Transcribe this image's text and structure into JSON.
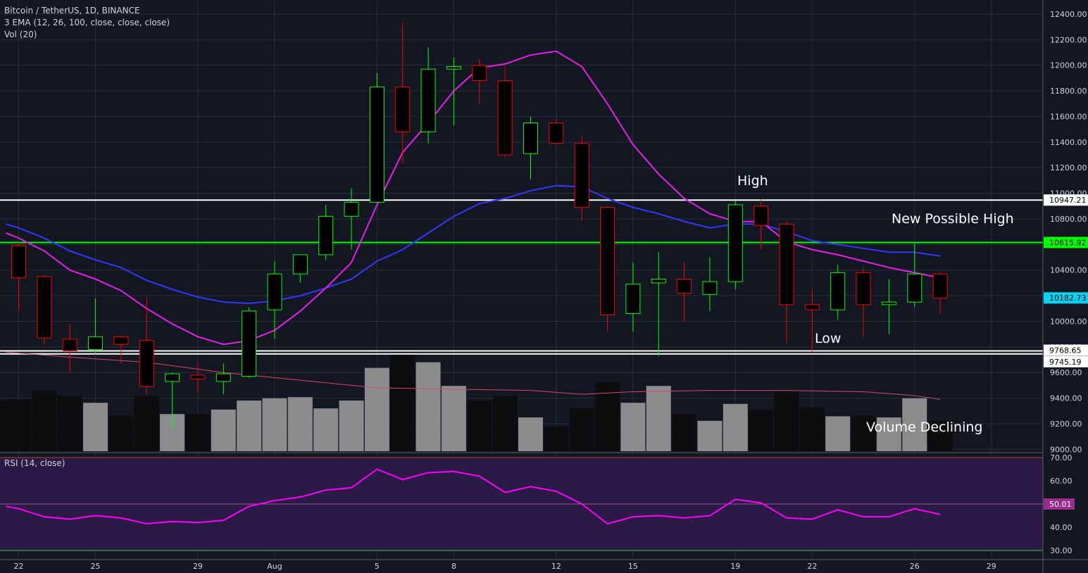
{
  "legend": {
    "symbol": "Bitcoin / TetherUS, 1D, BINANCE",
    "ema": "3 EMA (12, 26, 100, close, close, close)",
    "vol": "Vol (20)",
    "rsi": "RSI (14, close)"
  },
  "annotations": [
    "High",
    "New Possible High",
    "Low",
    "Volume Declining"
  ],
  "colors": {
    "background": "#131722",
    "up": "#00ff00",
    "down": "#ff0000",
    "ema_fast": "#e91ee9",
    "ema_slow": "#3535ff",
    "ema_long": "#d9456e",
    "rsi_line": "#ff00ff",
    "rsi_band": "#2a1a45",
    "level_green": "#00ff00",
    "level_white": "#ffffff",
    "price_badge": "#00d4f0"
  },
  "chart_data": {
    "type": "candlestick",
    "price_axis_ticks": [
      "12400.00",
      "12200.00",
      "12000.00",
      "11800.00",
      "11600.00",
      "11400.00",
      "11200.00",
      "11000.00",
      "10800.00",
      "10600.00",
      "10400.00",
      "10200.00",
      "10000.00",
      "9800.00",
      "9600.00",
      "9400.00",
      "9200.00",
      "9000.00"
    ],
    "rsi_axis_ticks": [
      "70.00",
      "60.00",
      "50.00",
      "40.00",
      "30.00"
    ],
    "x_labels": [
      {
        "day": 0,
        "label": "22"
      },
      {
        "day": 3,
        "label": "25"
      },
      {
        "day": 7,
        "label": "29"
      },
      {
        "day": 10,
        "label": "Aug"
      },
      {
        "day": 14,
        "label": "5"
      },
      {
        "day": 17,
        "label": "8"
      },
      {
        "day": 21,
        "label": "12"
      },
      {
        "day": 24,
        "label": "15"
      },
      {
        "day": 28,
        "label": "19"
      },
      {
        "day": 31,
        "label": "22"
      },
      {
        "day": 35,
        "label": "26"
      },
      {
        "day": 38,
        "label": "29"
      }
    ],
    "price_labels": [
      {
        "value": 10947.21,
        "text": "10947.21",
        "style": "white"
      },
      {
        "value": 10615.92,
        "text": "10615.92",
        "style": "green"
      },
      {
        "value": 10182.73,
        "text": "10182.73",
        "style": "cyan"
      },
      {
        "value": 9768.65,
        "text": "9768.65",
        "style": "white"
      },
      {
        "value": 9745.19,
        "text": "9745.19",
        "style": "white"
      }
    ],
    "rsi_label": "50.01",
    "levels": [
      {
        "value": 10947.21,
        "color": "white"
      },
      {
        "value": 10615.92,
        "color": "green"
      },
      {
        "value": 9768.65,
        "color": "white"
      },
      {
        "value": 9745.19,
        "color": "white"
      }
    ],
    "candles": [
      {
        "day": 0,
        "o": 10590,
        "h": 10620,
        "l": 10080,
        "c": 10340
      },
      {
        "day": 1,
        "o": 10350,
        "h": 10360,
        "l": 9820,
        "c": 9870
      },
      {
        "day": 2,
        "o": 9860,
        "h": 9980,
        "l": 9600,
        "c": 9770
      },
      {
        "day": 3,
        "o": 9780,
        "h": 10180,
        "l": 9740,
        "c": 9880
      },
      {
        "day": 4,
        "o": 9880,
        "h": 9890,
        "l": 9670,
        "c": 9820
      },
      {
        "day": 5,
        "o": 9850,
        "h": 10190,
        "l": 9430,
        "c": 9490
      },
      {
        "day": 6,
        "o": 9530,
        "h": 9600,
        "l": 9160,
        "c": 9590
      },
      {
        "day": 7,
        "o": 9580,
        "h": 9680,
        "l": 9440,
        "c": 9550
      },
      {
        "day": 8,
        "o": 9530,
        "h": 9670,
        "l": 9430,
        "c": 9590
      },
      {
        "day": 9,
        "o": 9570,
        "h": 10110,
        "l": 9560,
        "c": 10080
      },
      {
        "day": 10,
        "o": 10090,
        "h": 10470,
        "l": 9860,
        "c": 10370
      },
      {
        "day": 11,
        "o": 10370,
        "h": 10510,
        "l": 10300,
        "c": 10520
      },
      {
        "day": 12,
        "o": 10520,
        "h": 10910,
        "l": 10480,
        "c": 10820
      },
      {
        "day": 13,
        "o": 10820,
        "h": 11040,
        "l": 10560,
        "c": 10930
      },
      {
        "day": 14,
        "o": 10930,
        "h": 11940,
        "l": 10930,
        "c": 11830
      },
      {
        "day": 15,
        "o": 11830,
        "h": 12330,
        "l": 11230,
        "c": 11480
      },
      {
        "day": 16,
        "o": 11480,
        "h": 12140,
        "l": 11390,
        "c": 11970
      },
      {
        "day": 17,
        "o": 11970,
        "h": 12060,
        "l": 11530,
        "c": 11990
      },
      {
        "day": 18,
        "o": 12000,
        "h": 12050,
        "l": 11700,
        "c": 11880
      },
      {
        "day": 19,
        "o": 11880,
        "h": 11990,
        "l": 11280,
        "c": 11300
      },
      {
        "day": 20,
        "o": 11310,
        "h": 11600,
        "l": 11110,
        "c": 11550
      },
      {
        "day": 21,
        "o": 11550,
        "h": 11580,
        "l": 11400,
        "c": 11390
      },
      {
        "day": 22,
        "o": 11390,
        "h": 11450,
        "l": 10780,
        "c": 10890
      },
      {
        "day": 23,
        "o": 10890,
        "h": 10900,
        "l": 9920,
        "c": 10050
      },
      {
        "day": 24,
        "o": 10060,
        "h": 10460,
        "l": 9920,
        "c": 10290
      },
      {
        "day": 25,
        "o": 10300,
        "h": 10540,
        "l": 9730,
        "c": 10330
      },
      {
        "day": 26,
        "o": 10330,
        "h": 10460,
        "l": 10000,
        "c": 10220
      },
      {
        "day": 27,
        "o": 10210,
        "h": 10500,
        "l": 10080,
        "c": 10310
      },
      {
        "day": 28,
        "o": 10310,
        "h": 10940,
        "l": 10250,
        "c": 10910
      },
      {
        "day": 29,
        "o": 10900,
        "h": 10950,
        "l": 10560,
        "c": 10750
      },
      {
        "day": 30,
        "o": 10760,
        "h": 10780,
        "l": 9830,
        "c": 10130
      },
      {
        "day": 31,
        "o": 10130,
        "h": 10250,
        "l": 9750,
        "c": 10090
      },
      {
        "day": 32,
        "o": 10090,
        "h": 10440,
        "l": 10010,
        "c": 10380
      },
      {
        "day": 33,
        "o": 10380,
        "h": 10420,
        "l": 9880,
        "c": 10130
      },
      {
        "day": 34,
        "o": 10130,
        "h": 10330,
        "l": 9900,
        "c": 10150
      },
      {
        "day": 35,
        "o": 10150,
        "h": 10620,
        "l": 10110,
        "c": 10370
      },
      {
        "day": 36,
        "o": 10370,
        "h": 10380,
        "l": 10060,
        "c": 10180
      }
    ],
    "ema_fast": [
      {
        "day": -0.5,
        "v": 10690
      },
      {
        "day": 0,
        "v": 10650
      },
      {
        "day": 1,
        "v": 10550
      },
      {
        "day": 2,
        "v": 10400
      },
      {
        "day": 3,
        "v": 10330
      },
      {
        "day": 4,
        "v": 10240
      },
      {
        "day": 5,
        "v": 10100
      },
      {
        "day": 6,
        "v": 9980
      },
      {
        "day": 7,
        "v": 9880
      },
      {
        "day": 8,
        "v": 9820
      },
      {
        "day": 9,
        "v": 9850
      },
      {
        "day": 10,
        "v": 9930
      },
      {
        "day": 11,
        "v": 10080
      },
      {
        "day": 12,
        "v": 10260
      },
      {
        "day": 13,
        "v": 10460
      },
      {
        "day": 14,
        "v": 10910
      },
      {
        "day": 15,
        "v": 11320
      },
      {
        "day": 16,
        "v": 11550
      },
      {
        "day": 17,
        "v": 11800
      },
      {
        "day": 18,
        "v": 11980
      },
      {
        "day": 19,
        "v": 12010
      },
      {
        "day": 20,
        "v": 12080
      },
      {
        "day": 21,
        "v": 12110
      },
      {
        "day": 22,
        "v": 11990
      },
      {
        "day": 23,
        "v": 11700
      },
      {
        "day": 24,
        "v": 11380
      },
      {
        "day": 25,
        "v": 11150
      },
      {
        "day": 26,
        "v": 10960
      },
      {
        "day": 27,
        "v": 10840
      },
      {
        "day": 28,
        "v": 10780
      },
      {
        "day": 29,
        "v": 10780
      },
      {
        "day": 30,
        "v": 10620
      },
      {
        "day": 31,
        "v": 10560
      },
      {
        "day": 32,
        "v": 10520
      },
      {
        "day": 33,
        "v": 10470
      },
      {
        "day": 34,
        "v": 10420
      },
      {
        "day": 35,
        "v": 10380
      },
      {
        "day": 36,
        "v": 10340
      }
    ],
    "ema_slow": [
      {
        "day": -0.5,
        "v": 10760
      },
      {
        "day": 0,
        "v": 10730
      },
      {
        "day": 1,
        "v": 10650
      },
      {
        "day": 2,
        "v": 10550
      },
      {
        "day": 3,
        "v": 10480
      },
      {
        "day": 4,
        "v": 10420
      },
      {
        "day": 5,
        "v": 10320
      },
      {
        "day": 6,
        "v": 10250
      },
      {
        "day": 7,
        "v": 10190
      },
      {
        "day": 8,
        "v": 10150
      },
      {
        "day": 9,
        "v": 10140
      },
      {
        "day": 10,
        "v": 10160
      },
      {
        "day": 11,
        "v": 10200
      },
      {
        "day": 12,
        "v": 10260
      },
      {
        "day": 13,
        "v": 10330
      },
      {
        "day": 14,
        "v": 10470
      },
      {
        "day": 15,
        "v": 10560
      },
      {
        "day": 16,
        "v": 10690
      },
      {
        "day": 17,
        "v": 10820
      },
      {
        "day": 18,
        "v": 10920
      },
      {
        "day": 19,
        "v": 10960
      },
      {
        "day": 20,
        "v": 11020
      },
      {
        "day": 21,
        "v": 11060
      },
      {
        "day": 22,
        "v": 11050
      },
      {
        "day": 23,
        "v": 10960
      },
      {
        "day": 24,
        "v": 10890
      },
      {
        "day": 25,
        "v": 10840
      },
      {
        "day": 26,
        "v": 10780
      },
      {
        "day": 27,
        "v": 10730
      },
      {
        "day": 28,
        "v": 10760
      },
      {
        "day": 29,
        "v": 10760
      },
      {
        "day": 30,
        "v": 10700
      },
      {
        "day": 31,
        "v": 10630
      },
      {
        "day": 32,
        "v": 10600
      },
      {
        "day": 33,
        "v": 10570
      },
      {
        "day": 34,
        "v": 10540
      },
      {
        "day": 35,
        "v": 10540
      },
      {
        "day": 36,
        "v": 10510
      }
    ],
    "ema_long": [
      {
        "day": -0.5,
        "v": 9760
      },
      {
        "day": 2,
        "v": 9720
      },
      {
        "day": 5,
        "v": 9680
      },
      {
        "day": 8,
        "v": 9600
      },
      {
        "day": 11,
        "v": 9540
      },
      {
        "day": 14,
        "v": 9480
      },
      {
        "day": 17,
        "v": 9470
      },
      {
        "day": 20,
        "v": 9460
      },
      {
        "day": 22,
        "v": 9430
      },
      {
        "day": 24,
        "v": 9450
      },
      {
        "day": 27,
        "v": 9460
      },
      {
        "day": 30,
        "v": 9460
      },
      {
        "day": 33,
        "v": 9450
      },
      {
        "day": 35,
        "v": 9420
      },
      {
        "day": 36,
        "v": 9390
      }
    ],
    "volume": [
      {
        "day": -0.5,
        "h": 0.45,
        "hl": false
      },
      {
        "day": 0,
        "h": 0.46,
        "hl": false
      },
      {
        "day": 1,
        "h": 0.54,
        "hl": false
      },
      {
        "day": 2,
        "h": 0.49,
        "hl": false
      },
      {
        "day": 3,
        "h": 0.43,
        "hl": true
      },
      {
        "day": 4,
        "h": 0.31,
        "hl": false
      },
      {
        "day": 5,
        "h": 0.49,
        "hl": false
      },
      {
        "day": 6,
        "h": 0.33,
        "hl": true
      },
      {
        "day": 7,
        "h": 0.33,
        "hl": false
      },
      {
        "day": 8,
        "h": 0.37,
        "hl": true
      },
      {
        "day": 9,
        "h": 0.45,
        "hl": true
      },
      {
        "day": 10,
        "h": 0.47,
        "hl": true
      },
      {
        "day": 11,
        "h": 0.48,
        "hl": true
      },
      {
        "day": 12,
        "h": 0.38,
        "hl": true
      },
      {
        "day": 13,
        "h": 0.45,
        "hl": true
      },
      {
        "day": 14,
        "h": 0.74,
        "hl": true
      },
      {
        "day": 15,
        "h": 0.87,
        "hl": false
      },
      {
        "day": 16,
        "h": 0.79,
        "hl": true
      },
      {
        "day": 17,
        "h": 0.58,
        "hl": true
      },
      {
        "day": 18,
        "h": 0.45,
        "hl": false
      },
      {
        "day": 19,
        "h": 0.49,
        "hl": false
      },
      {
        "day": 20,
        "h": 0.3,
        "hl": true
      },
      {
        "day": 21,
        "h": 0.22,
        "hl": false
      },
      {
        "day": 22,
        "h": 0.38,
        "hl": false
      },
      {
        "day": 23,
        "h": 0.61,
        "hl": false
      },
      {
        "day": 24,
        "h": 0.43,
        "hl": true
      },
      {
        "day": 25,
        "h": 0.58,
        "hl": true
      },
      {
        "day": 26,
        "h": 0.33,
        "hl": false
      },
      {
        "day": 27,
        "h": 0.27,
        "hl": true
      },
      {
        "day": 28,
        "h": 0.42,
        "hl": true
      },
      {
        "day": 29,
        "h": 0.37,
        "hl": false
      },
      {
        "day": 30,
        "h": 0.53,
        "hl": false
      },
      {
        "day": 31,
        "h": 0.39,
        "hl": false
      },
      {
        "day": 32,
        "h": 0.31,
        "hl": true
      },
      {
        "day": 33,
        "h": 0.31,
        "hl": false
      },
      {
        "day": 34,
        "h": 0.3,
        "hl": true
      },
      {
        "day": 35,
        "h": 0.47,
        "hl": true
      },
      {
        "day": 36,
        "h": 0.27,
        "hl": false
      }
    ],
    "rsi": [
      {
        "day": -0.5,
        "v": 49
      },
      {
        "day": 0,
        "v": 48
      },
      {
        "day": 1,
        "v": 44.5
      },
      {
        "day": 2,
        "v": 43.5
      },
      {
        "day": 3,
        "v": 45
      },
      {
        "day": 4,
        "v": 44
      },
      {
        "day": 5,
        "v": 41.5
      },
      {
        "day": 6,
        "v": 42.5
      },
      {
        "day": 7,
        "v": 42
      },
      {
        "day": 8,
        "v": 43
      },
      {
        "day": 9,
        "v": 49
      },
      {
        "day": 10,
        "v": 51.5
      },
      {
        "day": 11,
        "v": 53
      },
      {
        "day": 12,
        "v": 56
      },
      {
        "day": 13,
        "v": 57
      },
      {
        "day": 14,
        "v": 65
      },
      {
        "day": 15,
        "v": 60.5
      },
      {
        "day": 16,
        "v": 63.5
      },
      {
        "day": 17,
        "v": 64
      },
      {
        "day": 18,
        "v": 62
      },
      {
        "day": 19,
        "v": 55
      },
      {
        "day": 20,
        "v": 57.5
      },
      {
        "day": 21,
        "v": 55.5
      },
      {
        "day": 22,
        "v": 50
      },
      {
        "day": 23,
        "v": 41.5
      },
      {
        "day": 24,
        "v": 44.5
      },
      {
        "day": 25,
        "v": 45
      },
      {
        "day": 26,
        "v": 44
      },
      {
        "day": 27,
        "v": 45
      },
      {
        "day": 28,
        "v": 52
      },
      {
        "day": 29,
        "v": 50.5
      },
      {
        "day": 30,
        "v": 44
      },
      {
        "day": 31,
        "v": 43.5
      },
      {
        "day": 32,
        "v": 47.5
      },
      {
        "day": 33,
        "v": 44.5
      },
      {
        "day": 34,
        "v": 44.5
      },
      {
        "day": 35,
        "v": 48
      },
      {
        "day": 36,
        "v": 45.5
      }
    ]
  }
}
